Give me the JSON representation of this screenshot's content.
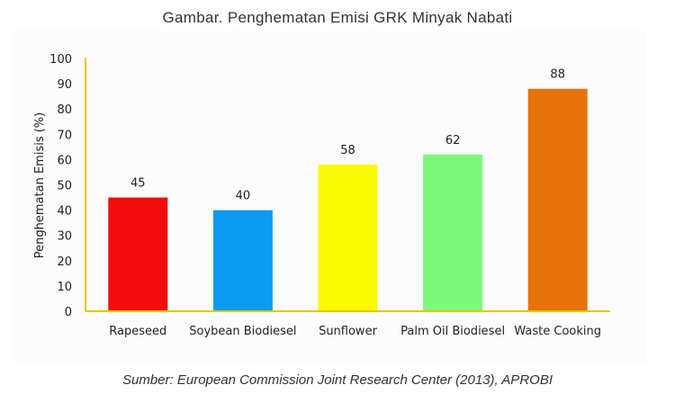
{
  "title": "Gambar. Penghematan  Emisi GRK Minyak Nabati",
  "source": "Sumber: European Commission Joint Research Center (2013), APROBI",
  "chart_data": {
    "type": "bar",
    "categories": [
      "Rapeseed",
      "Soybean Biodiesel",
      "Sunflower",
      "Palm Oil Biodiesel",
      "Waste Cooking"
    ],
    "values": [
      45,
      40,
      58,
      62,
      88
    ],
    "value_labels": [
      "45",
      "40",
      "58",
      "62",
      "88"
    ],
    "colors": [
      "#f40c0c",
      "#0b9cf0",
      "#fafa00",
      "#7cf87a",
      "#e8730a"
    ],
    "axis_color": "#e2c800",
    "ylabel": "Penghematan Emisis (%)",
    "ylim": [
      0,
      100
    ],
    "yticks": [
      0,
      10,
      20,
      30,
      40,
      50,
      60,
      70,
      80,
      90,
      100
    ],
    "grid": false,
    "legend": "none"
  }
}
